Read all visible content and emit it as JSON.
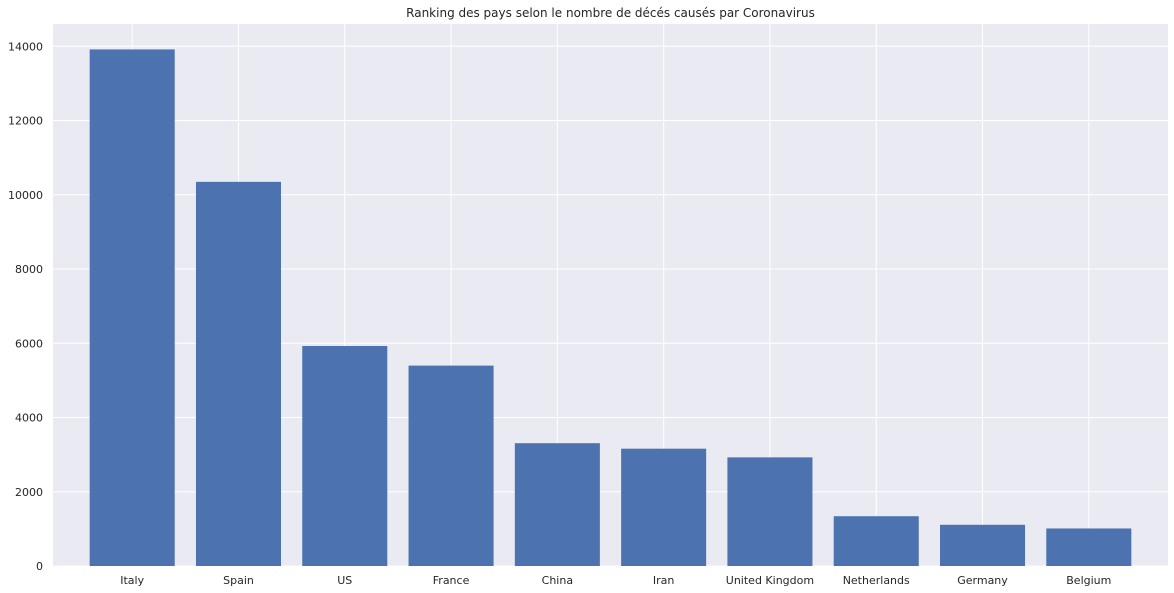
{
  "chart_data": {
    "type": "bar",
    "title": "Ranking des pays selon le nombre de décés causés par Coronavirus",
    "xlabel": "",
    "ylabel": "",
    "categories": [
      "Italy",
      "Spain",
      "US",
      "France",
      "China",
      "Iran",
      "United Kingdom",
      "Netherlands",
      "Germany",
      "Belgium"
    ],
    "values": [
      13915,
      10348,
      5926,
      5398,
      3308,
      3160,
      2926,
      1341,
      1110,
      1011
    ],
    "ylim": [
      0,
      14600
    ],
    "yticks": [
      0,
      2000,
      4000,
      6000,
      8000,
      10000,
      12000,
      14000
    ],
    "grid": true,
    "legend": "none",
    "colors": {
      "bar": "#4c72b0",
      "plot_background": "#eaeaf2",
      "grid": "#ffffff",
      "text": "#262626"
    }
  }
}
